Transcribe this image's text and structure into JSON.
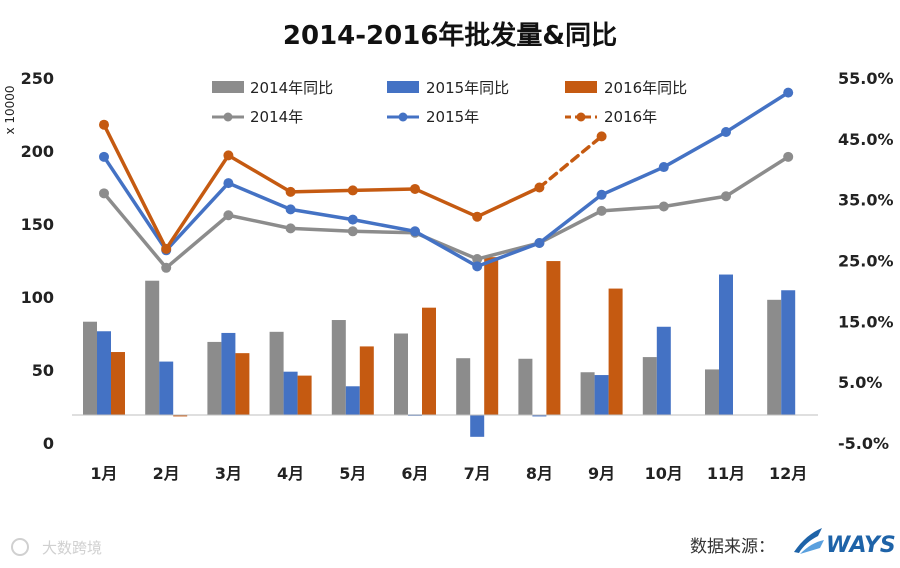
{
  "chart_data": {
    "title": "2014-2016年批发量&同比",
    "categories": [
      "1月",
      "2月",
      "3月",
      "4月",
      "5月",
      "6月",
      "7月",
      "8月",
      "9月",
      "10月",
      "11月",
      "12月"
    ],
    "left_axis": {
      "unit_label": "x 10000",
      "min": 0,
      "max": 250,
      "ticks": [
        "0",
        "50",
        "100",
        "150",
        "200",
        "250"
      ]
    },
    "right_axis": {
      "min": -0.05,
      "max": 0.6,
      "ticks": [
        "-5.0%",
        "5.0%",
        "15.0%",
        "25.0%",
        "35.0%",
        "45.0%",
        "55.0%"
      ]
    },
    "bar_series": [
      {
        "name": "2014年同比",
        "color": "#8c8c8c",
        "values": [
          0.166,
          0.239,
          0.13,
          0.148,
          0.169,
          0.145,
          0.101,
          0.1,
          0.076,
          0.103,
          0.081,
          0.205
        ]
      },
      {
        "name": "2015年同比",
        "color": "#4472c4",
        "values": [
          0.149,
          0.095,
          0.146,
          0.077,
          0.051,
          0.001,
          -0.039,
          -0.001,
          0.071,
          0.157,
          0.25,
          0.222
        ]
      },
      {
        "name": "2016年同比",
        "color": "#c55a11",
        "values": [
          0.112,
          -0.001,
          0.11,
          0.07,
          0.122,
          0.191,
          0.281,
          0.274,
          0.225,
          null,
          null,
          null
        ]
      }
    ],
    "line_series": [
      {
        "name": "2014年",
        "color": "#8c8c8c",
        "dashed_from_index": null,
        "values": [
          171,
          120,
          156,
          147,
          145,
          144,
          126,
          137,
          159,
          162,
          169,
          196
        ]
      },
      {
        "name": "2015年",
        "color": "#4472c4",
        "dashed_from_index": null,
        "values": [
          196,
          132,
          178,
          160,
          153,
          145,
          121,
          137,
          170,
          189,
          213,
          240
        ]
      },
      {
        "name": "2016年",
        "color": "#c55a11",
        "dashed_from_index": 7,
        "values": [
          218,
          133,
          197,
          172,
          173,
          174,
          155,
          175,
          210,
          null,
          null,
          null
        ]
      }
    ]
  },
  "source_label": "数据来源：",
  "brand": {
    "name": "WAYS",
    "color": "#1e63a8"
  },
  "watermark": "大数跨境"
}
